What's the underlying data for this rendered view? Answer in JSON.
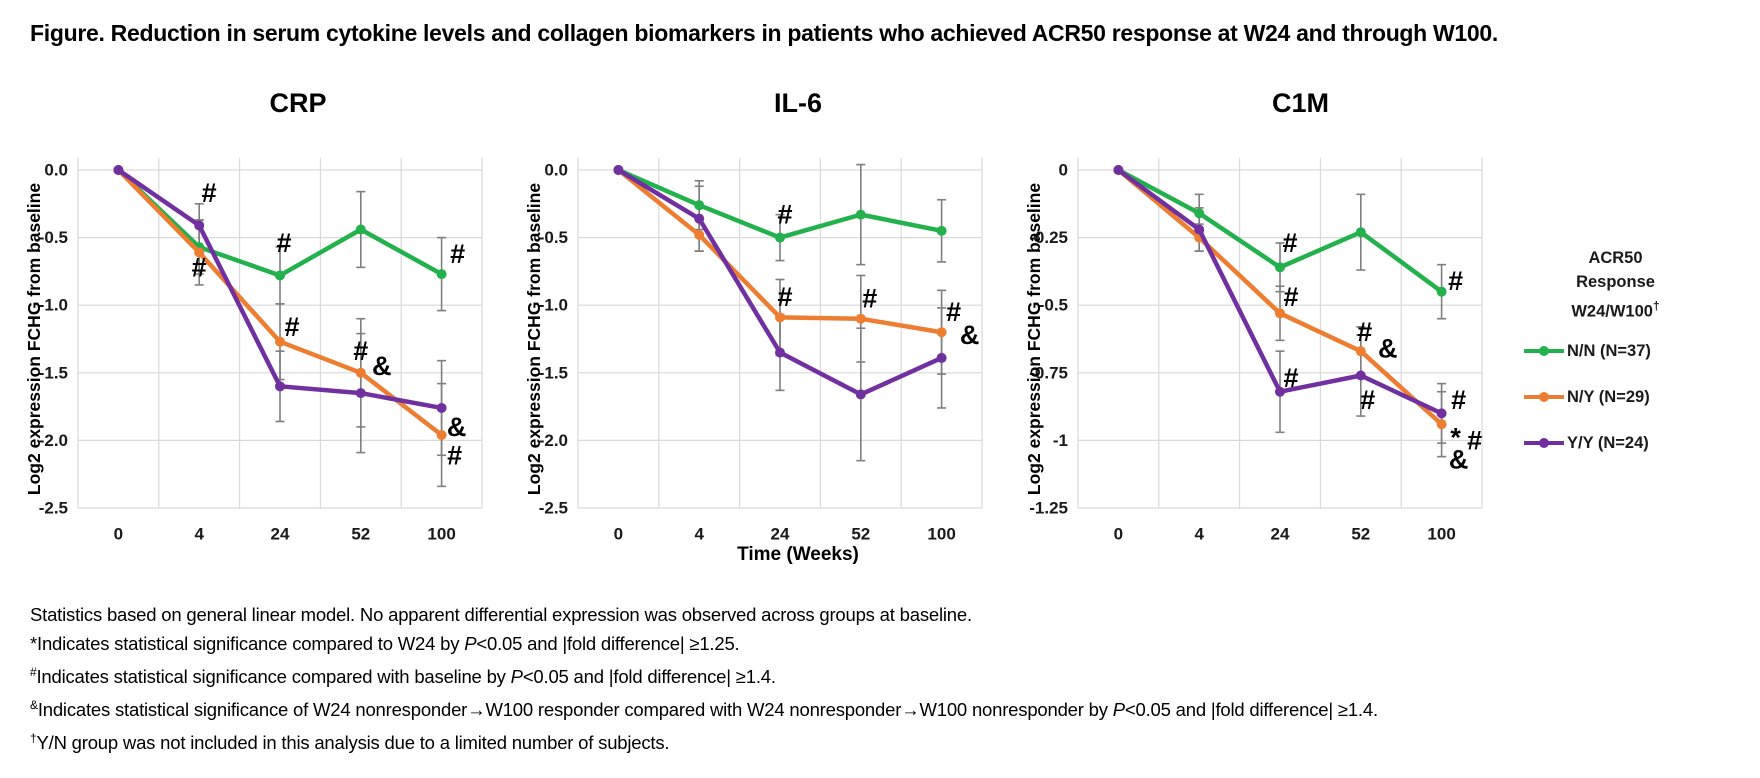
{
  "title": "Figure. Reduction in serum cytokine levels and collagen biomarkers in patients who achieved ACR50 response at W24 and through W100.",
  "colors": {
    "green": "#22B14C",
    "orange": "#ED7D31",
    "purple": "#7030A0",
    "error_bar": "#7F7F7F",
    "grid": "#D9D9D9",
    "text": "#1a1a1a"
  },
  "chart_data": [
    {
      "type": "line",
      "title": "CRP",
      "ylabel": "Log2 expression FCHG from baseline",
      "xlabel": "",
      "categories": [
        "0",
        "4",
        "24",
        "52",
        "100"
      ],
      "x_values_weeks": [
        0,
        4,
        24,
        52,
        100
      ],
      "ylim": [
        -2.5,
        0
      ],
      "yticks": [
        {
          "v": 0,
          "t": "0.0"
        },
        {
          "v": -0.5,
          "t": "-0.5"
        },
        {
          "v": -1,
          "t": "-1.0"
        },
        {
          "v": -1.5,
          "t": "-1.5"
        },
        {
          "v": -2,
          "t": "-2.0"
        },
        {
          "v": -2.5,
          "t": "-2.5"
        }
      ],
      "series": [
        {
          "name": "N/N (N=37)",
          "color": "#22B14C",
          "values": [
            0,
            -0.57,
            -0.78,
            -0.44,
            -0.77
          ],
          "err": [
            0,
            0.2,
            0.21,
            0.28,
            0.27
          ]
        },
        {
          "name": "N/Y (N=29)",
          "color": "#ED7D31",
          "values": [
            0,
            -0.61,
            -1.27,
            -1.5,
            -1.96
          ],
          "err": [
            0,
            0.24,
            0.28,
            0.4,
            0.38
          ]
        },
        {
          "name": "Y/Y (N=24)",
          "color": "#7030A0",
          "values": [
            0,
            -0.41,
            -1.6,
            -1.65,
            -1.76
          ],
          "err": [
            0,
            0.16,
            0.26,
            0.44,
            0.35
          ]
        }
      ],
      "annotations": [
        {
          "xi": 1,
          "y": -0.17,
          "dx": 10,
          "t": "#"
        },
        {
          "xi": 1,
          "y": -0.72,
          "dx": 0,
          "t": "#"
        },
        {
          "xi": 2,
          "y": -0.54,
          "dx": 4,
          "t": "#"
        },
        {
          "xi": 2,
          "y": -1.16,
          "dx": 12,
          "t": "#"
        },
        {
          "xi": 3,
          "y": -1.34,
          "dx": 0,
          "t": "#"
        },
        {
          "xi": 3,
          "y": -1.45,
          "dx": 21,
          "t": "&"
        },
        {
          "xi": 4,
          "y": -0.62,
          "dx": 16,
          "t": "#"
        },
        {
          "xi": 4,
          "y": -1.9,
          "dx": 15,
          "t": "&"
        },
        {
          "xi": 4,
          "y": -2.11,
          "dx": 13,
          "t": "#"
        }
      ]
    },
    {
      "type": "line",
      "title": "IL-6",
      "ylabel": "Log2 expression FCHG from baseline",
      "xlabel": "Time (Weeks)",
      "categories": [
        "0",
        "4",
        "24",
        "52",
        "100"
      ],
      "x_values_weeks": [
        0,
        4,
        24,
        52,
        100
      ],
      "ylim": [
        -2.5,
        0
      ],
      "yticks": [
        {
          "v": 0,
          "t": "0.0"
        },
        {
          "v": -0.5,
          "t": "-0.5"
        },
        {
          "v": -1,
          "t": "-1.0"
        },
        {
          "v": -1.5,
          "t": "-1.5"
        },
        {
          "v": -2,
          "t": "-2.0"
        },
        {
          "v": -2.5,
          "t": "-2.5"
        }
      ],
      "series": [
        {
          "name": "N/N (N=37)",
          "color": "#22B14C",
          "values": [
            0,
            -0.26,
            -0.5,
            -0.33,
            -0.45
          ],
          "err": [
            0,
            0.18,
            0.17,
            0.37,
            0.23
          ]
        },
        {
          "name": "N/Y (N=29)",
          "color": "#ED7D31",
          "values": [
            0,
            -0.48,
            -1.09,
            -1.1,
            -1.2
          ],
          "err": [
            0,
            0.12,
            0.28,
            0.32,
            0.31
          ]
        },
        {
          "name": "Y/Y (N=24)",
          "color": "#7030A0",
          "values": [
            0,
            -0.36,
            -1.35,
            -1.66,
            -1.39
          ],
          "err": [
            0,
            0.24,
            0.28,
            0.49,
            0.37
          ]
        }
      ],
      "annotations": [
        {
          "xi": 2,
          "y": -0.33,
          "dx": 5,
          "t": "#"
        },
        {
          "xi": 2,
          "y": -0.94,
          "dx": 5,
          "t": "#"
        },
        {
          "xi": 3,
          "y": -0.95,
          "dx": 9,
          "t": "#"
        },
        {
          "xi": 4,
          "y": -1.05,
          "dx": 12,
          "t": "#"
        },
        {
          "xi": 4,
          "y": -1.22,
          "dx": 28,
          "t": "&"
        }
      ]
    },
    {
      "type": "line",
      "title": "C1M",
      "ylabel": "Log2 expression FCHG from baseline",
      "xlabel": "",
      "categories": [
        "0",
        "4",
        "24",
        "52",
        "100"
      ],
      "x_values_weeks": [
        0,
        4,
        24,
        52,
        100
      ],
      "ylim": [
        -1.25,
        0
      ],
      "yticks": [
        {
          "v": 0,
          "t": "0"
        },
        {
          "v": -0.25,
          "t": "-0.25"
        },
        {
          "v": -0.5,
          "t": "-0.5"
        },
        {
          "v": -0.75,
          "t": "-0.75"
        },
        {
          "v": -1,
          "t": "-1"
        },
        {
          "v": -1.25,
          "t": "-1.25"
        }
      ],
      "series": [
        {
          "name": "N/N (N=37)",
          "color": "#22B14C",
          "values": [
            0,
            -0.16,
            -0.36,
            -0.23,
            -0.45
          ],
          "err": [
            0,
            0.07,
            0.09,
            0.14,
            0.1
          ]
        },
        {
          "name": "N/Y (N=29)",
          "color": "#ED7D31",
          "values": [
            0,
            -0.25,
            -0.53,
            -0.67,
            -0.94
          ],
          "err": [
            0,
            0.05,
            0.1,
            0.09,
            0.12
          ]
        },
        {
          "name": "Y/Y (N=24)",
          "color": "#7030A0",
          "values": [
            0,
            -0.22,
            -0.82,
            -0.76,
            -0.9
          ],
          "err": [
            0,
            0.08,
            0.15,
            0.15,
            0.11
          ]
        }
      ],
      "annotations": [
        {
          "xi": 2,
          "y": -0.27,
          "dx": 10,
          "t": "#"
        },
        {
          "xi": 2,
          "y": -0.47,
          "dx": 11,
          "t": "#"
        },
        {
          "xi": 2,
          "y": -0.77,
          "dx": 11,
          "t": "#"
        },
        {
          "xi": 3,
          "y": -0.6,
          "dx": 4,
          "t": "#"
        },
        {
          "xi": 3,
          "y": -0.66,
          "dx": 27,
          "t": "&"
        },
        {
          "xi": 3,
          "y": -0.85,
          "dx": 7,
          "t": "#"
        },
        {
          "xi": 4,
          "y": -0.41,
          "dx": 14,
          "t": "#"
        },
        {
          "xi": 4,
          "y": -0.85,
          "dx": 17,
          "t": "#"
        },
        {
          "xi": 4,
          "y": -0.96,
          "dx": 14,
          "dy": 8,
          "t": "*"
        },
        {
          "xi": 4,
          "y": -1.0,
          "dx": 33,
          "t": "#"
        },
        {
          "xi": 4,
          "y": -1.07,
          "dx": 17,
          "t": "&"
        }
      ]
    }
  ],
  "legend": {
    "title_segments": [
      [
        {
          "t": "ACR50"
        }
      ],
      [
        {
          "t": "Response"
        }
      ],
      [
        {
          "t": "W24/W100"
        },
        {
          "t": "†",
          "sup": true
        }
      ]
    ],
    "items": [
      {
        "label": "N/N (N=37)",
        "color": "#22B14C"
      },
      {
        "label": "N/Y (N=29)",
        "color": "#ED7D31"
      },
      {
        "label": "Y/Y (N=24)",
        "color": "#7030A0"
      }
    ]
  },
  "footnotes": [
    [
      {
        "t": "Statistics based on general linear model. No apparent differential expression was observed across groups at baseline."
      }
    ],
    [
      {
        "t": "*Indicates statistical significance compared to W24 by "
      },
      {
        "t": "P",
        "i": true
      },
      {
        "t": "<0.05 and |fold difference| ≥1.25."
      }
    ],
    [
      {
        "t": "#",
        "sup": true
      },
      {
        "t": "Indicates statistical significance compared with baseline by "
      },
      {
        "t": "P",
        "i": true
      },
      {
        "t": "<0.05 and |fold difference| ≥1.4."
      }
    ],
    [
      {
        "t": "&",
        "sup": true
      },
      {
        "t": "Indicates statistical significance of W24 nonresponder"
      },
      {
        "t": "→"
      },
      {
        "t": "W100 responder compared with W24 nonresponder"
      },
      {
        "t": "→"
      },
      {
        "t": "W100 nonresponder by "
      },
      {
        "t": "P",
        "i": true
      },
      {
        "t": "<0.05 and |fold difference| ≥1.4."
      }
    ],
    [
      {
        "t": "†",
        "sup": true
      },
      {
        "t": "Y/N group was not included in this analysis due to a limited number of subjects."
      }
    ]
  ]
}
